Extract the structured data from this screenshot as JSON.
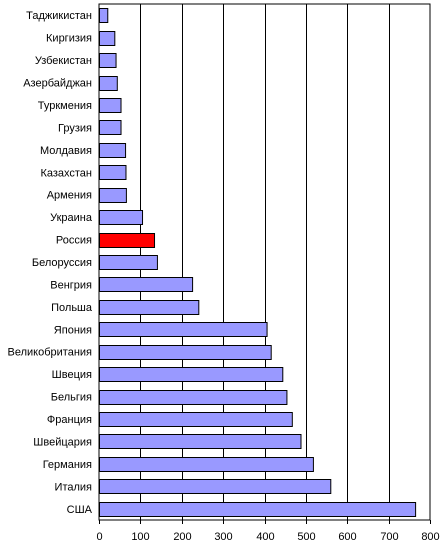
{
  "chart_data": {
    "type": "bar",
    "orientation": "horizontal",
    "title": "",
    "xlabel": "",
    "ylabel": "",
    "categories": [
      "Таджикистан",
      "Киргизия",
      "Узбекистан",
      "Азербайджан",
      "Туркмения",
      "Грузия",
      "Молдавия",
      "Казахстан",
      "Армения",
      "Украина",
      "Россия",
      "Белоруссия",
      "Венгрия",
      "Польша",
      "Япония",
      "Великобритания",
      "Швеция",
      "Бельгия",
      "Франция",
      "Швейцария",
      "Германия",
      "Италия",
      "США"
    ],
    "values": [
      20,
      37,
      40,
      43,
      52,
      52,
      63,
      64,
      65,
      104,
      133,
      140,
      225,
      240,
      405,
      415,
      443,
      453,
      466,
      487,
      517,
      559,
      764
    ],
    "xlim": [
      0,
      800
    ],
    "xticks": [
      "0",
      "100",
      "200",
      "300",
      "400",
      "500",
      "600",
      "700",
      "800"
    ],
    "grid": "vertical",
    "legend": "none",
    "colors": {
      "bar": "#9999ff",
      "highlight_bar": "#ff0000",
      "highlight_category": "Россия",
      "bar_stroke": "#000000",
      "grid": "#000000"
    }
  }
}
